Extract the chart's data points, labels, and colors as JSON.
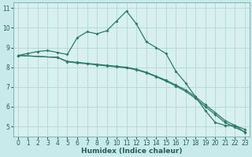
{
  "xlabel": "Humidex (Indice chaleur)",
  "background_color": "#c8eaea",
  "plot_bg_color": "#d8f0f0",
  "grid_color": "#b0d8d8",
  "line_color": "#2d7a6a",
  "xlim": [
    -0.5,
    23.5
  ],
  "ylim": [
    4.5,
    11.3
  ],
  "xticks": [
    0,
    1,
    2,
    3,
    4,
    5,
    6,
    7,
    8,
    9,
    10,
    11,
    12,
    13,
    14,
    15,
    16,
    17,
    18,
    19,
    20,
    21,
    22,
    23
  ],
  "yticks": [
    5,
    6,
    7,
    8,
    9,
    10,
    11
  ],
  "series1_x": [
    0,
    1,
    2,
    3,
    4,
    5,
    6,
    7,
    8,
    9,
    10,
    11,
    12,
    13,
    14,
    15,
    16,
    17,
    18,
    19,
    20,
    21,
    22,
    23
  ],
  "series1_y": [
    8.6,
    8.7,
    8.8,
    8.85,
    8.75,
    8.65,
    9.5,
    9.8,
    9.7,
    9.85,
    10.35,
    10.85,
    10.2,
    9.3,
    9.0,
    8.7,
    7.8,
    7.2,
    6.5,
    5.8,
    5.2,
    5.05,
    5.05,
    4.7
  ],
  "series2_x": [
    0,
    4,
    5,
    6,
    7,
    8,
    9,
    10,
    11,
    12,
    13,
    14,
    15,
    16,
    17,
    18,
    19,
    20,
    21,
    22,
    23
  ],
  "series2_y": [
    8.6,
    8.5,
    8.3,
    8.25,
    8.2,
    8.15,
    8.1,
    8.05,
    8.0,
    7.9,
    7.75,
    7.55,
    7.35,
    7.1,
    6.85,
    6.5,
    6.1,
    5.7,
    5.3,
    5.05,
    4.85
  ],
  "series3_x": [
    0,
    4,
    5,
    6,
    7,
    8,
    9,
    10,
    11,
    12,
    13,
    14,
    15,
    16,
    17,
    18,
    19,
    20,
    21,
    22,
    23
  ],
  "series3_y": [
    8.6,
    8.5,
    8.28,
    8.22,
    8.18,
    8.12,
    8.07,
    8.02,
    7.97,
    7.87,
    7.72,
    7.52,
    7.3,
    7.05,
    6.78,
    6.42,
    6.0,
    5.6,
    5.2,
    4.95,
    4.72
  ]
}
